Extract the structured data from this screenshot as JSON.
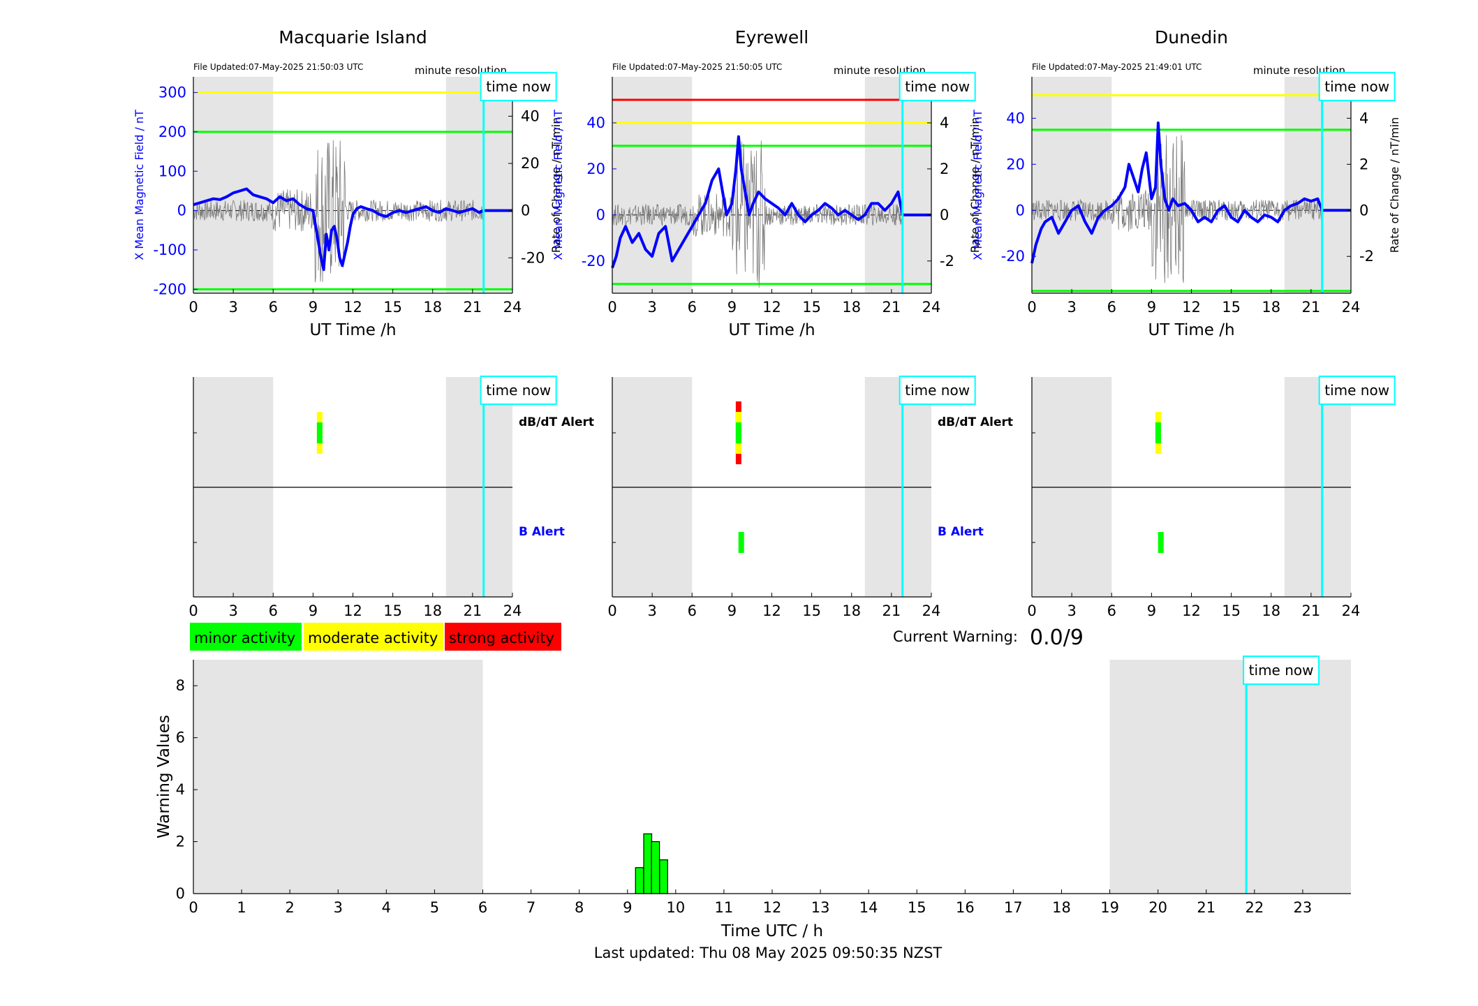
{
  "colors": {
    "blue": "#0000ff",
    "green": "#00ff00",
    "yellow": "#ffff00",
    "red": "#ff0000",
    "cyan": "#00ffff",
    "night_shading": "#e5e5e5",
    "bar_fill": "#00ff00"
  },
  "time_now_label": "time now",
  "footer": "Last updated: Thu 08 May 2025 09:50:35 NZST",
  "legend": [
    {
      "label": "minor activity",
      "color": "#00ff00"
    },
    {
      "label": "moderate activity",
      "color": "#ffff00"
    },
    {
      "label": "strong activity",
      "color": "#ff0000"
    }
  ],
  "current_warning": {
    "label": "Current Warning:",
    "value": "0.0/9"
  },
  "alert_labels": {
    "dbdt": "dB/dT Alert",
    "b": "B Alert"
  },
  "chart_data": [
    {
      "type": "line",
      "title": "Macquarie Island",
      "file_updated": "File Updated:07-May-2025 21:50:03 UTC",
      "resolution": "minute resolution",
      "xlabel": "UT Time /h",
      "ylabel_left": "X Mean Magnetic Field / nT",
      "ylabel_right": "Rate of Change / nT/min",
      "xlim": [
        0,
        24
      ],
      "xticks": [
        0,
        3,
        6,
        9,
        12,
        15,
        18,
        21,
        24
      ],
      "ylim_left": [
        -210,
        340
      ],
      "yticks_left": [
        -200,
        -100,
        0,
        100,
        200,
        300
      ],
      "ylim_right": [
        -35,
        56.7
      ],
      "yticks_right": [
        -20,
        0,
        20,
        40
      ],
      "night_bands": [
        [
          0,
          6
        ],
        [
          19,
          24
        ]
      ],
      "time_now": 21.83,
      "thresholds_left": [
        {
          "value": 300,
          "color": "#ffff00"
        },
        {
          "value": 200,
          "color": "#00ff00"
        },
        {
          "value": -200,
          "color": "#00ff00"
        }
      ],
      "series": [
        {
          "x": [
            0,
            0.5,
            1,
            1.5,
            2,
            2.5,
            3,
            3.5,
            4,
            4.5,
            5,
            5.5,
            6,
            6.5,
            7,
            7.5,
            8,
            8.5,
            9,
            9.2,
            9.4,
            9.6,
            9.8,
            10,
            10.2,
            10.4,
            10.6,
            10.8,
            11,
            11.2,
            11.4,
            11.6,
            11.8,
            12,
            12.3,
            12.6,
            13,
            13.5,
            14,
            14.5,
            15,
            15.5,
            16,
            16.5,
            17,
            17.5,
            18,
            18.5,
            19,
            19.5,
            20,
            20.5,
            21,
            21.5,
            21.83,
            24
          ],
          "values": [
            15,
            20,
            25,
            30,
            28,
            35,
            45,
            50,
            55,
            40,
            35,
            30,
            20,
            35,
            25,
            30,
            15,
            5,
            0,
            -40,
            -80,
            -120,
            -150,
            -60,
            -100,
            -50,
            -40,
            -70,
            -120,
            -140,
            -110,
            -80,
            -40,
            -10,
            5,
            10,
            5,
            0,
            -10,
            -15,
            -5,
            0,
            -5,
            0,
            5,
            10,
            0,
            -5,
            5,
            0,
            -5,
            0,
            5,
            -5,
            0,
            0
          ]
        }
      ]
    },
    {
      "type": "line",
      "title": "Eyrewell",
      "file_updated": "File Updated:07-May-2025 21:50:05 UTC",
      "resolution": "minute resolution",
      "xlabel": "UT Time /h",
      "ylabel_left": "X Mean Magnetic Field / nT",
      "ylabel_right": "Rate of Change / nT/min",
      "xlim": [
        0,
        24
      ],
      "xticks": [
        0,
        3,
        6,
        9,
        12,
        15,
        18,
        21,
        24
      ],
      "ylim_left": [
        -34,
        60
      ],
      "yticks_left": [
        -20,
        0,
        20,
        40
      ],
      "ylim_right": [
        -3.4,
        6.0
      ],
      "yticks_right": [
        -2,
        0,
        2,
        4
      ],
      "night_bands": [
        [
          0,
          6
        ],
        [
          19,
          24
        ]
      ],
      "time_now": 21.83,
      "thresholds_left": [
        {
          "value": 50,
          "color": "#ff0000"
        },
        {
          "value": 40,
          "color": "#ffff00"
        },
        {
          "value": 30,
          "color": "#00ff00"
        },
        {
          "value": -30,
          "color": "#00ff00"
        }
      ],
      "series": [
        {
          "x": [
            0,
            0.3,
            0.6,
            1,
            1.5,
            2,
            2.5,
            3,
            3.5,
            4,
            4.5,
            5,
            5.5,
            6,
            6.5,
            7,
            7.5,
            8,
            8.3,
            8.6,
            9,
            9.3,
            9.5,
            9.7,
            10,
            10.3,
            10.6,
            11,
            11.5,
            12,
            12.5,
            13,
            13.5,
            14,
            14.5,
            15,
            15.5,
            16,
            16.5,
            17,
            17.5,
            18,
            18.5,
            19,
            19.5,
            20,
            20.5,
            21,
            21.5,
            21.83,
            24
          ],
          "values": [
            -23,
            -18,
            -10,
            -5,
            -12,
            -8,
            -15,
            -18,
            -8,
            -5,
            -20,
            -15,
            -10,
            -5,
            0,
            5,
            15,
            20,
            10,
            0,
            5,
            20,
            34,
            20,
            10,
            0,
            5,
            10,
            7,
            5,
            3,
            0,
            5,
            0,
            -3,
            0,
            2,
            5,
            3,
            0,
            2,
            0,
            -2,
            0,
            5,
            5,
            2,
            5,
            10,
            0,
            0
          ]
        }
      ]
    },
    {
      "type": "line",
      "title": "Dunedin",
      "file_updated": "File Updated:07-May-2025 21:49:01 UTC",
      "resolution": "minute resolution",
      "xlabel": "UT Time /h",
      "ylabel_left": "X Mean Magnetic Field / nT",
      "ylabel_right": "Rate of Change / nT/min",
      "xlim": [
        0,
        24
      ],
      "xticks": [
        0,
        3,
        6,
        9,
        12,
        15,
        18,
        21,
        24
      ],
      "ylim_left": [
        -36,
        58
      ],
      "yticks_left": [
        -20,
        0,
        20,
        40
      ],
      "ylim_right": [
        -3.6,
        5.8
      ],
      "yticks_right": [
        -2,
        0,
        2,
        4
      ],
      "night_bands": [
        [
          0,
          6
        ],
        [
          19,
          24
        ]
      ],
      "time_now": 21.83,
      "thresholds_left": [
        {
          "value": 50,
          "color": "#ffff00"
        },
        {
          "value": 35,
          "color": "#00ff00"
        },
        {
          "value": -35,
          "color": "#00ff00"
        }
      ],
      "series": [
        {
          "x": [
            0,
            0.3,
            0.7,
            1,
            1.5,
            2,
            2.5,
            3,
            3.5,
            4,
            4.5,
            5,
            5.5,
            6,
            6.5,
            7,
            7.3,
            7.6,
            8,
            8.3,
            8.6,
            9,
            9.3,
            9.5,
            9.7,
            10,
            10.3,
            10.6,
            11,
            11.5,
            12,
            12.5,
            13,
            13.5,
            14,
            14.5,
            15,
            15.5,
            16,
            16.5,
            17,
            17.5,
            18,
            18.5,
            19,
            19.5,
            20,
            20.5,
            21,
            21.5,
            21.83,
            24
          ],
          "values": [
            -23,
            -15,
            -8,
            -5,
            -3,
            -10,
            -5,
            0,
            2,
            -5,
            -10,
            -3,
            0,
            2,
            5,
            10,
            20,
            15,
            8,
            18,
            25,
            5,
            10,
            38,
            20,
            5,
            0,
            5,
            2,
            3,
            0,
            -5,
            -3,
            -5,
            0,
            2,
            -3,
            -5,
            0,
            -3,
            -5,
            -2,
            -3,
            -5,
            0,
            2,
            3,
            5,
            4,
            5,
            0,
            0
          ]
        }
      ]
    },
    {
      "type": "bar",
      "station": "Macquarie Island",
      "xticks": [
        0,
        3,
        6,
        9,
        12,
        15,
        18,
        21,
        24
      ],
      "xlim": [
        0,
        24
      ],
      "night_bands": [
        [
          0,
          6
        ],
        [
          19,
          24
        ]
      ],
      "time_now": 21.83,
      "dbdt_alerts": [
        {
          "x": 9.5,
          "color": "#ffff00",
          "span": [
            -2,
            2
          ]
        },
        {
          "x": 9.5,
          "color": "#00ff00",
          "span": [
            -1,
            1
          ]
        }
      ],
      "b_alerts": []
    },
    {
      "type": "bar",
      "station": "Eyrewell",
      "xticks": [
        0,
        3,
        6,
        9,
        12,
        15,
        18,
        21,
        24
      ],
      "xlim": [
        0,
        24
      ],
      "night_bands": [
        [
          0,
          6
        ],
        [
          19,
          24
        ]
      ],
      "time_now": 21.83,
      "dbdt_alerts": [
        {
          "x": 9.5,
          "color": "#ff0000",
          "span": [
            -3,
            3
          ]
        },
        {
          "x": 9.5,
          "color": "#ffff00",
          "span": [
            -2,
            2
          ]
        },
        {
          "x": 9.5,
          "color": "#00ff00",
          "span": [
            -1,
            1
          ]
        }
      ],
      "b_alerts": [
        {
          "x": 9.7,
          "color": "#00ff00",
          "span": [
            -1,
            1
          ]
        }
      ]
    },
    {
      "type": "bar",
      "station": "Dunedin",
      "xticks": [
        0,
        3,
        6,
        9,
        12,
        15,
        18,
        21,
        24
      ],
      "xlim": [
        0,
        24
      ],
      "night_bands": [
        [
          0,
          6
        ],
        [
          19,
          24
        ]
      ],
      "time_now": 21.83,
      "dbdt_alerts": [
        {
          "x": 9.5,
          "color": "#ffff00",
          "span": [
            -2,
            2
          ]
        },
        {
          "x": 9.5,
          "color": "#00ff00",
          "span": [
            -1,
            1
          ]
        }
      ],
      "b_alerts": [
        {
          "x": 9.7,
          "color": "#00ff00",
          "span": [
            -1,
            1
          ]
        }
      ]
    },
    {
      "type": "bar",
      "xlabel": "Time UTC / h",
      "ylabel": "Warning Values",
      "xlim": [
        0,
        24
      ],
      "ylim": [
        0,
        9
      ],
      "xticks": [
        0,
        1,
        2,
        3,
        4,
        5,
        6,
        7,
        8,
        9,
        10,
        11,
        12,
        13,
        14,
        15,
        16,
        17,
        18,
        19,
        20,
        21,
        22,
        23
      ],
      "yticks": [
        0,
        2,
        4,
        6,
        8
      ],
      "night_bands": [
        [
          0,
          6
        ],
        [
          19,
          24
        ]
      ],
      "time_now": 21.83,
      "bars": [
        {
          "x": 9.25,
          "value": 1.0
        },
        {
          "x": 9.42,
          "value": 2.3
        },
        {
          "x": 9.58,
          "value": 2.0
        },
        {
          "x": 9.75,
          "value": 1.3
        }
      ]
    }
  ]
}
